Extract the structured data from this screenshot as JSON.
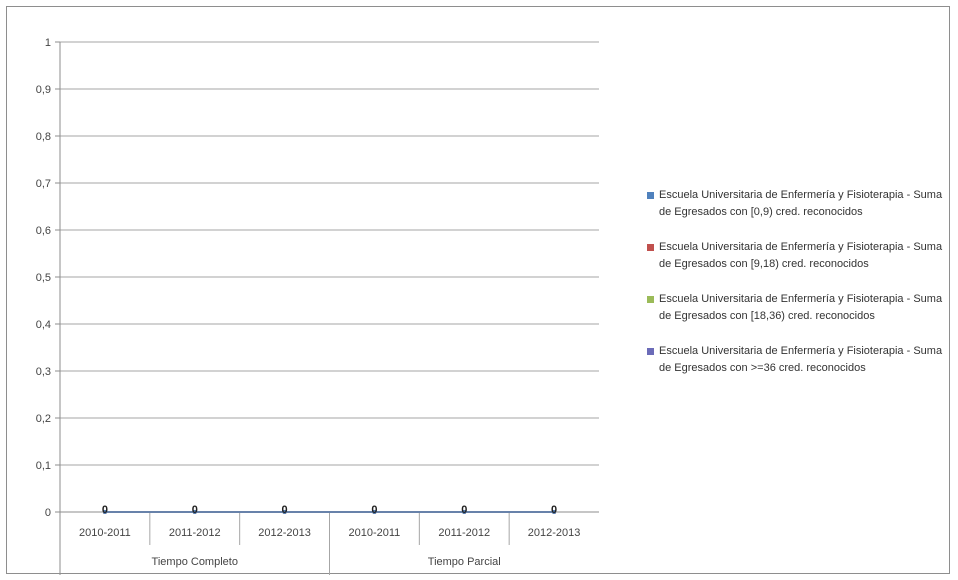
{
  "chart_data": {
    "type": "line",
    "title": "",
    "xlabel": "",
    "ylabel": "",
    "ylim": [
      0,
      1
    ],
    "yticks": [
      "0",
      "0,1",
      "0,2",
      "0,3",
      "0,4",
      "0,5",
      "0,6",
      "0,7",
      "0,8",
      "0,9",
      "1"
    ],
    "grid": true,
    "legend_position": "right",
    "groups": [
      {
        "label": "Tiempo Completo",
        "categories": [
          "2010-2011",
          "2011-2012",
          "2012-2013"
        ]
      },
      {
        "label": "Tiempo Parcial",
        "categories": [
          "2010-2011",
          "2011-2012",
          "2012-2013"
        ]
      }
    ],
    "categories": [
      "2010-2011",
      "2011-2012",
      "2012-2013",
      "2010-2011",
      "2011-2012",
      "2012-2013"
    ],
    "series": [
      {
        "name": "Escuela Universitaria de Enfermería y Fisioterapia - Suma de Egresados con >=36 cred. reconocidos",
        "color": "#6b6bb8",
        "values": [
          0,
          0,
          0,
          0,
          0,
          0
        ]
      },
      {
        "name": "Escuela Universitaria de Enfermería y Fisioterapia - Suma de Egresados con [18,36) cred. reconocidos",
        "color": "#9bbb59",
        "values": [
          0,
          0,
          0,
          0,
          0,
          0
        ]
      },
      {
        "name": "Escuela Universitaria de Enfermería y Fisioterapia - Suma de Egresados con [9,18) cred. reconocidos",
        "color": "#c0504d",
        "values": [
          0,
          0,
          0,
          0,
          0,
          0
        ]
      },
      {
        "name": "Escuela Universitaria de Enfermería y Fisioterapia - Suma de Egresados con [0,9) cred. reconocidos",
        "color": "#4f81bd",
        "values": [
          0,
          0,
          0,
          0,
          0,
          0
        ]
      }
    ],
    "data_labels": [
      "0",
      "0",
      "0",
      "0",
      "0",
      "0"
    ]
  }
}
